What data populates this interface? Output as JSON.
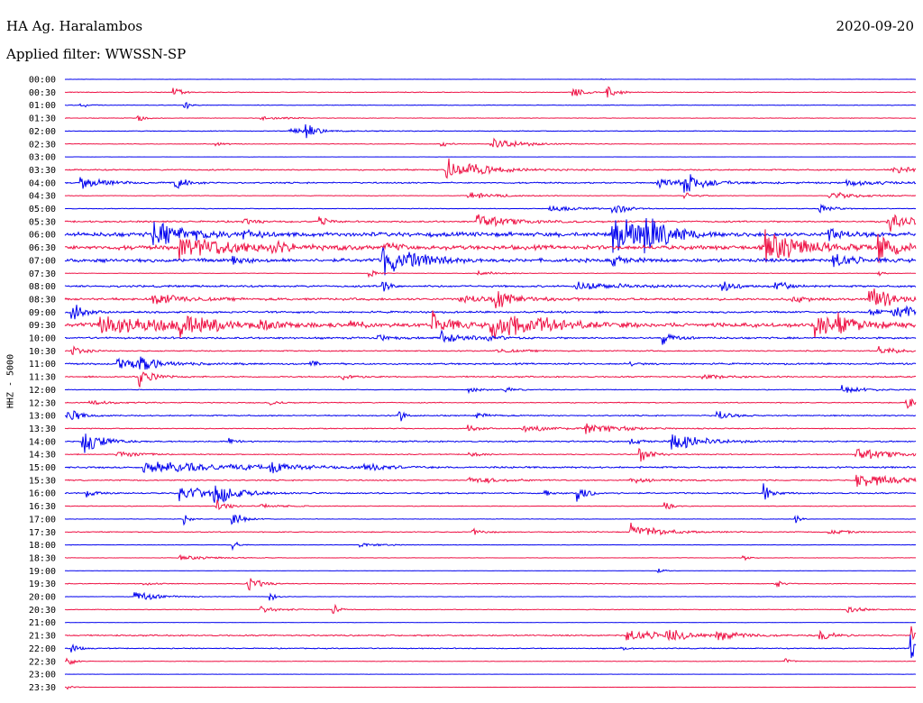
{
  "header": {
    "station": "HA Ag. Haralambos",
    "date": "2020-09-20",
    "filter": "Applied filter: WWSSN-SP"
  },
  "chart_data": {
    "type": "line",
    "title": "HA Ag. Haralambos",
    "ylabel": "HHZ - 5000",
    "row_labels": [
      "00:00",
      "00:30",
      "01:00",
      "01:30",
      "02:00",
      "02:30",
      "03:00",
      "03:30",
      "04:00",
      "04:30",
      "05:00",
      "05:30",
      "06:00",
      "06:30",
      "07:00",
      "07:30",
      "08:00",
      "08:30",
      "09:00",
      "09:30",
      "10:00",
      "10:30",
      "11:00",
      "11:30",
      "12:00",
      "12:30",
      "13:00",
      "13:30",
      "14:00",
      "14:30",
      "15:00",
      "15:30",
      "16:00",
      "16:30",
      "17:00",
      "17:30",
      "18:00",
      "18:30",
      "19:00",
      "19:30",
      "20:00",
      "20:30",
      "21:00",
      "21:30",
      "22:00",
      "22:30",
      "23:00",
      "23:30"
    ],
    "colors": {
      "even": "#0000ee",
      "odd": "#ee1144"
    },
    "amplitudes": [
      0.05,
      0.15,
      0.12,
      0.12,
      0.15,
      0.12,
      0.04,
      0.28,
      0.3,
      0.12,
      0.15,
      0.35,
      0.9,
      0.9,
      0.75,
      0.1,
      0.4,
      0.5,
      0.4,
      0.9,
      0.4,
      0.25,
      0.35,
      0.3,
      0.15,
      0.2,
      0.25,
      0.2,
      0.3,
      0.2,
      0.35,
      0.25,
      0.3,
      0.15,
      0.1,
      0.2,
      0.1,
      0.1,
      0.05,
      0.15,
      0.1,
      0.15,
      0.05,
      0.3,
      0.2,
      0.1,
      0.05,
      0.05
    ],
    "events": [
      [
        [
          667,
          0.1,
          3
        ]
      ],
      [
        [
          193,
          0.6,
          6
        ],
        [
          636,
          0.7,
          8
        ],
        [
          674,
          0.7,
          8
        ]
      ],
      [
        [
          90,
          0.3,
          6
        ],
        [
          205,
          0.4,
          5
        ]
      ],
      [
        [
          153,
          0.6,
          5
        ],
        [
          290,
          0.2,
          20
        ]
      ],
      [
        [
          340,
          0.9,
          6
        ],
        [
          320,
          0.3,
          30
        ]
      ],
      [
        [
          545,
          0.6,
          25
        ],
        [
          490,
          0.3,
          6
        ],
        [
          240,
          0.2,
          8
        ]
      ],
      [],
      [
        [
          495,
          1.4,
          12
        ],
        [
          520,
          0.5,
          30
        ],
        [
          990,
          0.4,
          25
        ]
      ],
      [
        [
          90,
          0.6,
          20
        ],
        [
          195,
          0.6,
          10
        ],
        [
          760,
          1.2,
          10
        ],
        [
          730,
          0.4,
          40
        ],
        [
          940,
          0.3,
          30
        ]
      ],
      [
        [
          520,
          0.3,
          30
        ],
        [
          920,
          0.4,
          25
        ],
        [
          760,
          0.3,
          10
        ]
      ],
      [
        [
          680,
          0.6,
          12
        ],
        [
          610,
          0.3,
          25
        ],
        [
          910,
          0.4,
          12
        ]
      ],
      [
        [
          355,
          0.6,
          6
        ],
        [
          530,
          0.6,
          30
        ],
        [
          985,
          1.2,
          15
        ],
        [
          270,
          0.3,
          10
        ]
      ],
      [
        [
          170,
          1.2,
          30
        ],
        [
          680,
          2.2,
          25
        ],
        [
          715,
          1.5,
          20
        ],
        [
          920,
          0.8,
          10
        ],
        [
          270,
          0.4,
          8
        ]
      ],
      [
        [
          200,
          1.2,
          50
        ],
        [
          300,
          1.3,
          5
        ],
        [
          850,
          1.4,
          35
        ],
        [
          975,
          1.3,
          15
        ],
        [
          430,
          0.4,
          10
        ]
      ],
      [
        [
          425,
          1.6,
          20
        ],
        [
          450,
          0.6,
          20
        ],
        [
          925,
          0.8,
          15
        ],
        [
          258,
          0.5,
          10
        ],
        [
          680,
          0.5,
          10
        ]
      ],
      [
        [
          410,
          0.5,
          5
        ],
        [
          975,
          0.3,
          5
        ],
        [
          530,
          0.2,
          20
        ]
      ],
      [
        [
          640,
          0.4,
          40
        ],
        [
          800,
          0.7,
          10
        ],
        [
          860,
          0.6,
          10
        ],
        [
          425,
          0.7,
          6
        ]
      ],
      [
        [
          170,
          0.6,
          25
        ],
        [
          550,
          0.8,
          20
        ],
        [
          965,
          1.2,
          20
        ],
        [
          880,
          0.4,
          10
        ],
        [
          510,
          0.4,
          25
        ]
      ],
      [
        [
          80,
          1.2,
          10
        ],
        [
          990,
          0.8,
          25
        ],
        [
          965,
          0.4,
          10
        ]
      ],
      [
        [
          110,
          1.0,
          60
        ],
        [
          200,
          0.8,
          30
        ],
        [
          480,
          1.2,
          15
        ],
        [
          545,
          1.5,
          30
        ],
        [
          595,
          0.8,
          20
        ],
        [
          905,
          1.2,
          20
        ],
        [
          930,
          0.6,
          20
        ],
        [
          390,
          0.5,
          8
        ],
        [
          290,
          0.4,
          8
        ]
      ],
      [
        [
          490,
          0.6,
          20
        ],
        [
          735,
          0.6,
          10
        ],
        [
          420,
          0.3,
          10
        ],
        [
          540,
          0.4,
          10
        ]
      ],
      [
        [
          80,
          0.5,
          10
        ],
        [
          975,
          0.5,
          15
        ],
        [
          550,
          0.2,
          20
        ]
      ],
      [
        [
          130,
          0.6,
          30
        ],
        [
          155,
          0.8,
          10
        ],
        [
          345,
          0.4,
          5
        ],
        [
          700,
          0.2,
          5
        ]
      ],
      [
        [
          155,
          1.0,
          10
        ],
        [
          380,
          0.4,
          10
        ],
        [
          780,
          0.2,
          20
        ]
      ],
      [
        [
          520,
          0.3,
          10
        ],
        [
          560,
          0.3,
          10
        ],
        [
          935,
          0.4,
          20
        ]
      ],
      [
        [
          100,
          0.2,
          20
        ],
        [
          1005,
          0.6,
          15
        ],
        [
          300,
          0.2,
          10
        ]
      ],
      [
        [
          75,
          0.9,
          10
        ],
        [
          443,
          0.8,
          4
        ],
        [
          795,
          0.6,
          10
        ],
        [
          530,
          0.3,
          10
        ]
      ],
      [
        [
          520,
          0.4,
          10
        ],
        [
          650,
          0.5,
          30
        ],
        [
          580,
          0.3,
          30
        ]
      ],
      [
        [
          92,
          1.4,
          15
        ],
        [
          255,
          0.5,
          5
        ],
        [
          745,
          1.0,
          25
        ],
        [
          700,
          0.3,
          10
        ]
      ],
      [
        [
          130,
          0.4,
          20
        ],
        [
          710,
          0.8,
          10
        ],
        [
          950,
          0.6,
          30
        ],
        [
          520,
          0.3,
          10
        ]
      ],
      [
        [
          160,
          0.6,
          80
        ],
        [
          300,
          0.5,
          20
        ],
        [
          405,
          0.4,
          15
        ]
      ],
      [
        [
          950,
          0.8,
          30
        ],
        [
          520,
          0.3,
          30
        ],
        [
          700,
          0.2,
          30
        ]
      ],
      [
        [
          238,
          1.2,
          15
        ],
        [
          200,
          0.8,
          30
        ],
        [
          640,
          1.2,
          8
        ],
        [
          848,
          1.0,
          6
        ],
        [
          95,
          0.5,
          8
        ],
        [
          605,
          0.4,
          5
        ]
      ],
      [
        [
          240,
          0.6,
          10
        ],
        [
          738,
          0.5,
          5
        ],
        [
          290,
          0.2,
          20
        ]
      ],
      [
        [
          205,
          0.5,
          5
        ],
        [
          258,
          0.7,
          10
        ],
        [
          883,
          0.5,
          4
        ]
      ],
      [
        [
          700,
          0.8,
          25
        ],
        [
          525,
          0.3,
          10
        ],
        [
          920,
          0.2,
          20
        ]
      ],
      [
        [
          258,
          0.6,
          5
        ],
        [
          400,
          0.2,
          20
        ]
      ],
      [
        [
          825,
          0.3,
          5
        ],
        [
          200,
          0.2,
          30
        ]
      ],
      [
        [
          730,
          0.3,
          5
        ]
      ],
      [
        [
          275,
          0.8,
          10
        ],
        [
          860,
          0.5,
          5
        ],
        [
          160,
          0.2,
          10
        ]
      ],
      [
        [
          150,
          0.5,
          20
        ],
        [
          300,
          0.5,
          5
        ]
      ],
      [
        [
          370,
          0.6,
          5
        ],
        [
          940,
          0.3,
          15
        ],
        [
          290,
          0.3,
          15
        ]
      ],
      [],
      [
        [
          695,
          0.6,
          30
        ],
        [
          740,
          0.6,
          15
        ],
        [
          795,
          0.5,
          20
        ],
        [
          910,
          0.5,
          10
        ],
        [
          1012,
          1.0,
          6
        ]
      ],
      [
        [
          80,
          0.6,
          5
        ],
        [
          1010,
          1.5,
          6
        ],
        [
          690,
          0.2,
          5
        ]
      ],
      [
        [
          75,
          0.6,
          5
        ],
        [
          870,
          0.5,
          5
        ]
      ],
      [],
      [
        [
          75,
          0.3,
          5
        ]
      ]
    ]
  }
}
